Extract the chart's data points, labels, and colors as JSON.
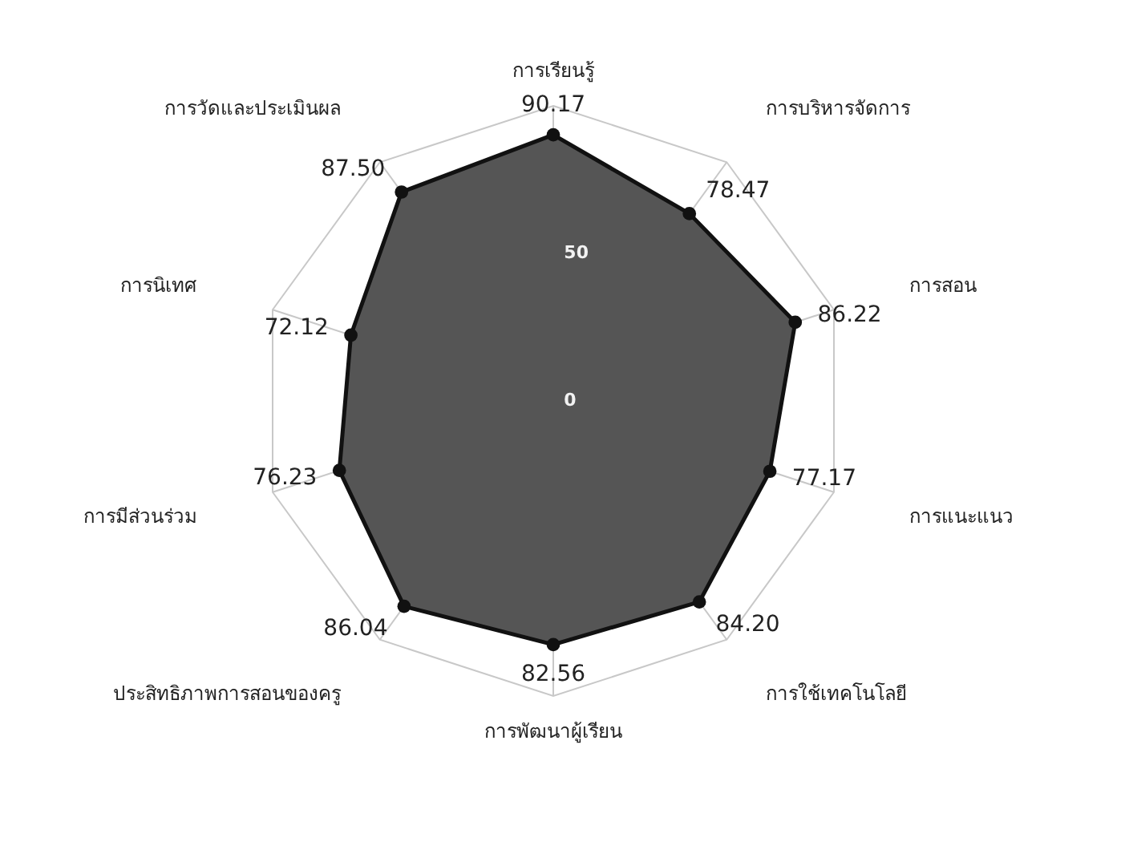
{
  "chart_data": {
    "type": "radar",
    "categories": [
      "การเรียนรู้",
      "การบริหารจัดการ",
      "การสอน",
      "การแนะแนว",
      "การใช้เทคโนโลยี",
      "การพัฒนาผู้เรียน",
      "ประสิทธิภาพการสอนของครู",
      "การมีส่วนร่วม",
      "การนิเทศ",
      "การวัดและประเมินผล"
    ],
    "series": [
      {
        "color": "#555555",
        "values": [
          90.17,
          78.47,
          86.22,
          77.17,
          84.2,
          82.56,
          86.04,
          76.23,
          72.12,
          87.5
        ],
        "value_labels": [
          "90.17",
          "78.47",
          "86.22",
          "77.17",
          "84.20",
          "82.56",
          "86.04",
          "76.23",
          "72.12",
          "87.50"
        ]
      }
    ],
    "ylim": [
      0,
      100
    ],
    "yticks": [
      0,
      50
    ],
    "grid": true,
    "marker": "circle",
    "line_style": "solid"
  }
}
